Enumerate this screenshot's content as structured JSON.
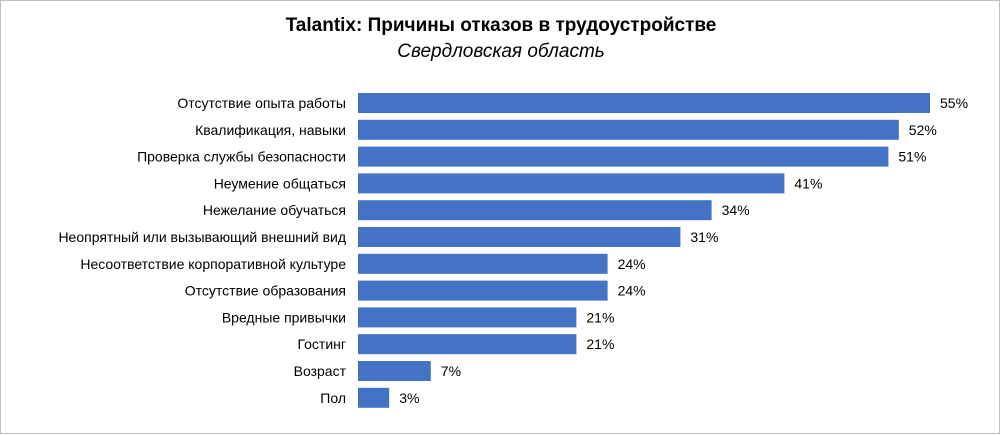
{
  "chart_data": {
    "type": "bar",
    "orientation": "horizontal",
    "title": "Talantix: Причины отказов в трудоустройстве",
    "subtitle": "Свердловская область",
    "categories": [
      "Отсутствие опыта работы",
      "Квалификация, навыки",
      "Проверка службы безопасности",
      "Неумение общаться",
      "Нежелание обучаться",
      "Неопрятный или вызывающий внешний вид",
      "Несоответствие корпоративной культуре",
      "Отсутствие образования",
      "Вредные привычки",
      "Гостинг",
      "Возраст",
      "Пол"
    ],
    "values": [
      55,
      52,
      51,
      41,
      34,
      31,
      24,
      24,
      21,
      21,
      7,
      3
    ],
    "value_suffix": "%",
    "xlim": [
      0,
      55
    ],
    "bar_color": "#4472c4",
    "xlabel": "",
    "ylabel": "",
    "grid": false,
    "legend": "none"
  }
}
